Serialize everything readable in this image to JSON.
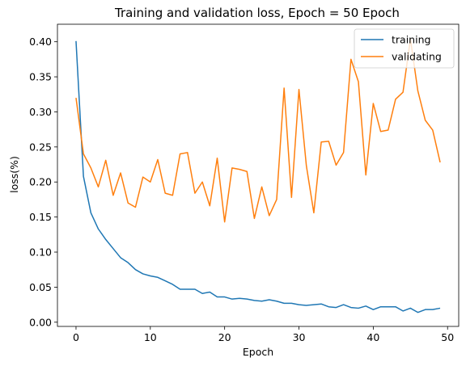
{
  "chart_data": {
    "type": "line",
    "title": "Training and validation loss, Epoch = 50 Epoch",
    "xlabel": "Epoch",
    "ylabel": "loss(%)",
    "xlim": [
      -2.5,
      51.5
    ],
    "ylim": [
      -0.006,
      0.425
    ],
    "xticks": [
      0,
      10,
      20,
      30,
      40,
      50
    ],
    "yticks": [
      0.0,
      0.05,
      0.1,
      0.15,
      0.2,
      0.25,
      0.3,
      0.35,
      0.4
    ],
    "grid": false,
    "legend_position": "top-right",
    "x": [
      0,
      1,
      2,
      3,
      4,
      5,
      6,
      7,
      8,
      9,
      10,
      11,
      12,
      13,
      14,
      15,
      16,
      17,
      18,
      19,
      20,
      21,
      22,
      23,
      24,
      25,
      26,
      27,
      28,
      29,
      30,
      31,
      32,
      33,
      34,
      35,
      36,
      37,
      38,
      39,
      40,
      41,
      42,
      43,
      44,
      45,
      46,
      47,
      48,
      49
    ],
    "series": [
      {
        "name": "training",
        "color": "#1f77b4",
        "values": [
          0.401,
          0.208,
          0.156,
          0.133,
          0.118,
          0.105,
          0.092,
          0.085,
          0.075,
          0.069,
          0.066,
          0.064,
          0.059,
          0.054,
          0.047,
          0.047,
          0.047,
          0.041,
          0.043,
          0.036,
          0.036,
          0.033,
          0.034,
          0.033,
          0.031,
          0.03,
          0.032,
          0.03,
          0.027,
          0.027,
          0.025,
          0.024,
          0.025,
          0.026,
          0.022,
          0.021,
          0.025,
          0.021,
          0.02,
          0.023,
          0.018,
          0.022,
          0.022,
          0.022,
          0.016,
          0.02,
          0.014,
          0.018,
          0.018,
          0.02
        ]
      },
      {
        "name": "validating",
        "color": "#ff7f0e",
        "values": [
          0.32,
          0.24,
          0.22,
          0.193,
          0.231,
          0.181,
          0.213,
          0.17,
          0.164,
          0.207,
          0.2,
          0.232,
          0.184,
          0.181,
          0.24,
          0.242,
          0.184,
          0.2,
          0.166,
          0.234,
          0.143,
          0.22,
          0.218,
          0.215,
          0.148,
          0.193,
          0.152,
          0.175,
          0.334,
          0.178,
          0.332,
          0.223,
          0.156,
          0.257,
          0.258,
          0.224,
          0.242,
          0.375,
          0.343,
          0.21,
          0.312,
          0.272,
          0.274,
          0.318,
          0.328,
          0.404,
          0.33,
          0.288,
          0.274,
          0.228
        ]
      }
    ]
  }
}
